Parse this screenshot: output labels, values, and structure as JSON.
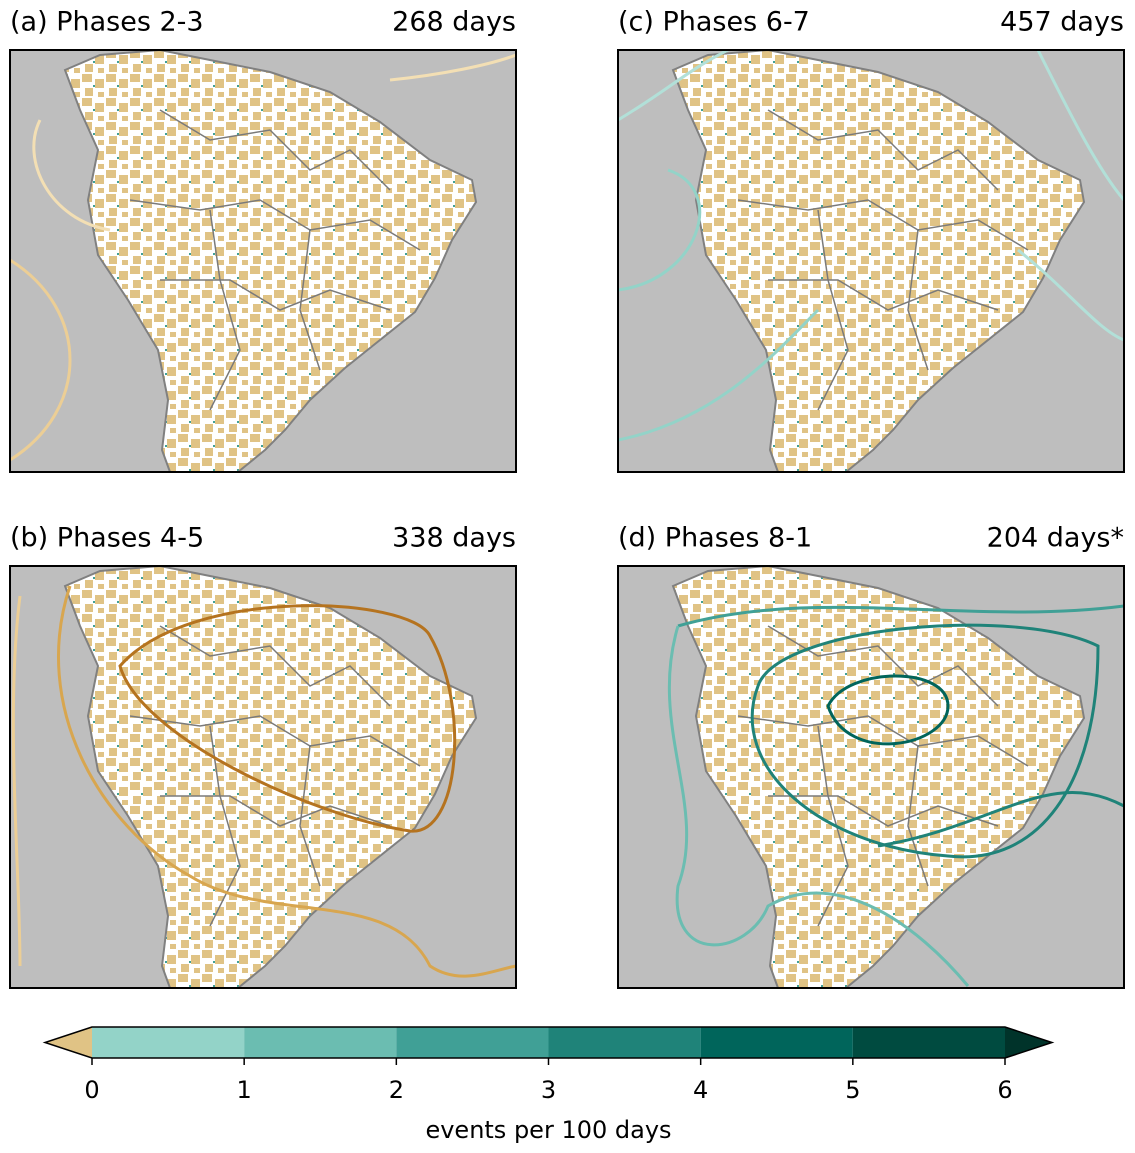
{
  "panels": [
    {
      "label": "(a) Phases 2-3",
      "days": "268 days"
    },
    {
      "label": "(b) Phases 4-5",
      "days": "338 days"
    },
    {
      "label": "(c) Phases 6-7",
      "days": "457 days"
    },
    {
      "label": "(d) Phases 8-1",
      "days": "204 days*"
    }
  ],
  "colorbar": {
    "label": "events per 100 days",
    "ticks": [
      0,
      1,
      2,
      3,
      4,
      5,
      6
    ],
    "colors": [
      "#93d3c8",
      "#6bbdb1",
      "#40a096",
      "#1f8379",
      "#00655b",
      "#004b40"
    ],
    "under_color": "#e0c385",
    "over_color": "#00332a"
  }
}
